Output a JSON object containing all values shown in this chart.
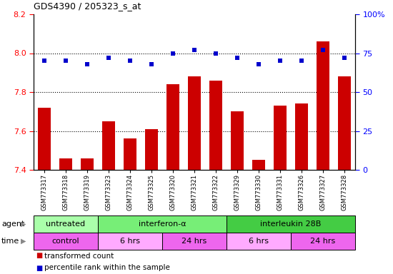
{
  "title": "GDS4390 / 205323_s_at",
  "samples": [
    "GSM773317",
    "GSM773318",
    "GSM773319",
    "GSM773323",
    "GSM773324",
    "GSM773325",
    "GSM773320",
    "GSM773321",
    "GSM773322",
    "GSM773329",
    "GSM773330",
    "GSM773331",
    "GSM773326",
    "GSM773327",
    "GSM773328"
  ],
  "transformed_counts": [
    7.72,
    7.46,
    7.46,
    7.65,
    7.56,
    7.61,
    7.84,
    7.88,
    7.86,
    7.7,
    7.45,
    7.73,
    7.74,
    8.06,
    7.88
  ],
  "percentile_ranks": [
    70,
    70,
    68,
    72,
    70,
    68,
    75,
    77,
    75,
    72,
    68,
    70,
    70,
    77,
    72
  ],
  "ylim_left": [
    7.4,
    8.2
  ],
  "ylim_right": [
    0,
    100
  ],
  "yticks_left": [
    7.4,
    7.6,
    7.8,
    8.0,
    8.2
  ],
  "yticks_right": [
    0,
    25,
    50,
    75,
    100
  ],
  "ytick_right_labels": [
    "0",
    "25",
    "50",
    "75",
    "100%"
  ],
  "bar_color": "#cc0000",
  "dot_color": "#0000cc",
  "dot_marker": "s",
  "agent_groups": [
    {
      "label": "untreated",
      "start": 0,
      "end": 3,
      "color": "#aaffaa"
    },
    {
      "label": "interferon-α",
      "start": 3,
      "end": 9,
      "color": "#77ee77"
    },
    {
      "label": "interleukin 28B",
      "start": 9,
      "end": 15,
      "color": "#44cc44"
    }
  ],
  "time_groups": [
    {
      "label": "control",
      "start": 0,
      "end": 3,
      "color": "#ee66ee"
    },
    {
      "label": "6 hrs",
      "start": 3,
      "end": 6,
      "color": "#ffaaff"
    },
    {
      "label": "24 hrs",
      "start": 6,
      "end": 9,
      "color": "#ee66ee"
    },
    {
      "label": "6 hrs",
      "start": 9,
      "end": 12,
      "color": "#ffaaff"
    },
    {
      "label": "24 hrs",
      "start": 12,
      "end": 15,
      "color": "#ee66ee"
    }
  ]
}
